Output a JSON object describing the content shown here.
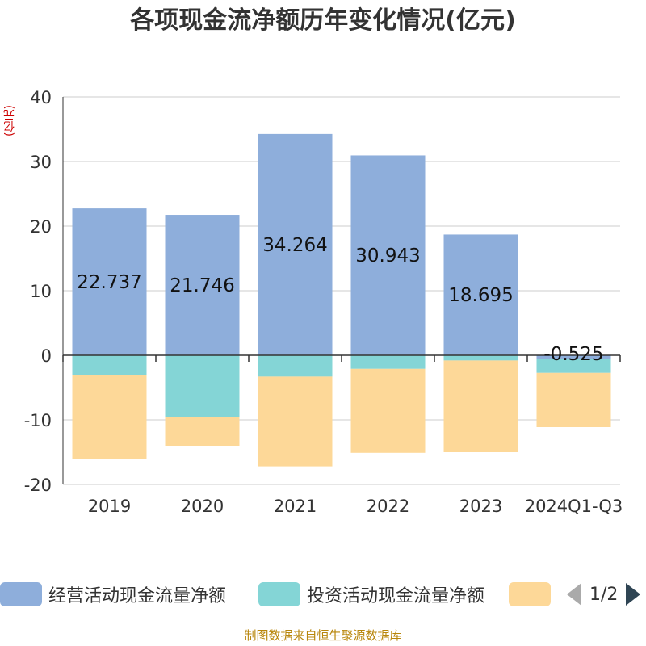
{
  "title": "各项现金流净额历年变化情况(亿元)",
  "unit_label": "(亿元)",
  "footer": "制图数据来自恒生聚源数据库",
  "pager": {
    "text": "1/2"
  },
  "chart_data": {
    "type": "bar",
    "stacked": true,
    "title": "各项现金流净额历年变化情况(亿元)",
    "ylabel": "(亿元)",
    "ylim": [
      -20,
      40
    ],
    "yticks": [
      -20,
      -10,
      0,
      10,
      20,
      30,
      40
    ],
    "ytick_labels": [
      "-20",
      "-10",
      "0",
      "10",
      "20",
      "30",
      "40"
    ],
    "grid": true,
    "legend_position": "bottom",
    "categories": [
      "2019",
      "2020",
      "2021",
      "2022",
      "2023",
      "2024Q1-Q3"
    ],
    "series": [
      {
        "name": "经营活动现金流量净额",
        "color": "#8eaedb",
        "values": [
          22.737,
          21.746,
          34.264,
          30.943,
          18.695,
          -0.525
        ],
        "labels": [
          "22.737",
          "21.746",
          "34.264",
          "30.943",
          "18.695",
          "-0.525"
        ]
      },
      {
        "name": "投资活动现金流量净额",
        "color": "#84d5d6",
        "values": [
          -3.1,
          -9.6,
          -3.3,
          -2.1,
          -0.8,
          -2.2
        ]
      },
      {
        "name": "",
        "color": "#fdd898",
        "values": [
          -13.0,
          -4.4,
          -13.9,
          -13.0,
          -14.2,
          -8.4
        ]
      }
    ]
  }
}
